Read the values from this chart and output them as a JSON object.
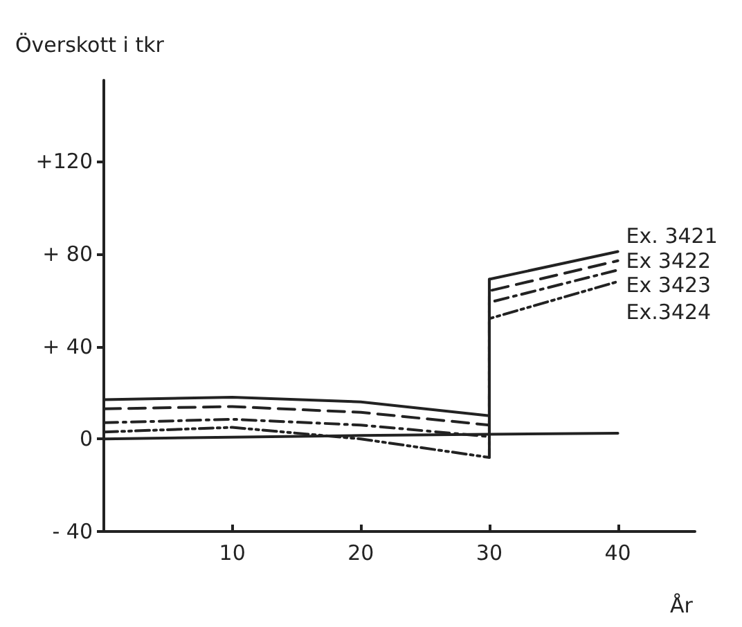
{
  "chart_data": {
    "type": "line",
    "xlabel": "År",
    "ylabel": "Överskott i tkr",
    "xlim": [
      0,
      46
    ],
    "xticks": [
      10,
      20,
      30,
      40
    ],
    "ylim": [
      -40,
      155
    ],
    "yticks": [
      {
        "value": -40,
        "label": "- 40"
      },
      {
        "value": 0,
        "label": "0"
      },
      {
        "value": 40,
        "label": "+ 40"
      },
      {
        "value": 80,
        "label": "+ 80"
      },
      {
        "value": 120,
        "label": "+120"
      }
    ],
    "grid": false,
    "legend": false,
    "marker": "none",
    "series": [
      {
        "name": "Ex. 3421",
        "color": "#222222",
        "line_style": "solid",
        "x": [
          0,
          10,
          20,
          30,
          30,
          40
        ],
        "values": [
          17,
          18,
          16,
          10,
          69,
          81
        ]
      },
      {
        "name": "Ex 3422",
        "color": "#222222",
        "line_style": "dashed",
        "x": [
          0,
          10,
          20,
          30,
          30,
          40
        ],
        "values": [
          13,
          14,
          11.5,
          6,
          64,
          77
        ]
      },
      {
        "name": "Ex 3423",
        "color": "#222222",
        "line_style": "dashdot",
        "x": [
          0,
          10,
          20,
          30,
          30,
          40
        ],
        "values": [
          7,
          8.5,
          6,
          1,
          59,
          73
        ]
      },
      {
        "name": "Ex.3424",
        "color": "#222222",
        "line_style": "dashdotdot",
        "x": [
          0,
          10,
          20,
          30,
          30,
          40
        ],
        "values": [
          3,
          5,
          0,
          -8,
          52,
          68
        ]
      },
      {
        "color": "#222222",
        "line_style": "solid",
        "x": [
          0,
          20,
          30,
          40
        ],
        "values": [
          0,
          1.5,
          2,
          2.5
        ]
      },
      {
        "color": "#222222",
        "line_style": "solid",
        "x": [
          30,
          30
        ],
        "values": [
          -8,
          69
        ]
      }
    ]
  }
}
